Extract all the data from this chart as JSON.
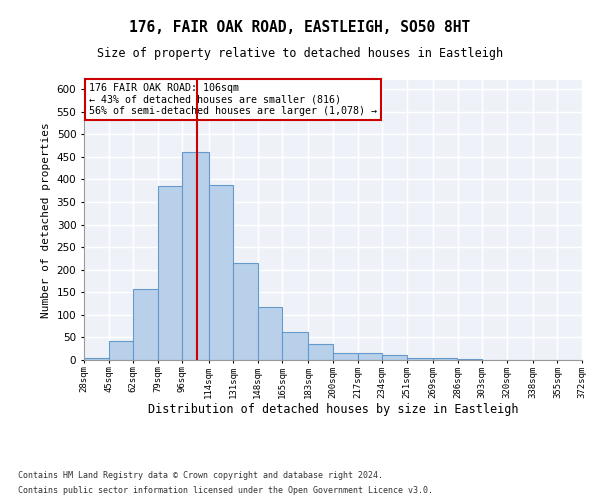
{
  "title_line1": "176, FAIR OAK ROAD, EASTLEIGH, SO50 8HT",
  "title_line2": "Size of property relative to detached houses in Eastleigh",
  "xlabel": "Distribution of detached houses by size in Eastleigh",
  "ylabel": "Number of detached properties",
  "annotation_line1": "176 FAIR OAK ROAD: 106sqm",
  "annotation_line2": "← 43% of detached houses are smaller (816)",
  "annotation_line3": "56% of semi-detached houses are larger (1,078) →",
  "property_size_sqm": 106,
  "bin_edges": [
    28,
    45,
    62,
    79,
    96,
    114,
    131,
    148,
    165,
    183,
    200,
    217,
    234,
    251,
    269,
    286,
    303,
    320,
    338,
    355,
    372
  ],
  "bar_heights": [
    5,
    42,
    158,
    385,
    460,
    388,
    215,
    118,
    62,
    35,
    15,
    15,
    10,
    5,
    5,
    3,
    1,
    1,
    0,
    0
  ],
  "bar_color": "#b8d0ea",
  "bar_edge_color": "#6699cc",
  "vline_color": "#cc0000",
  "vline_x": 106,
  "ylim": [
    0,
    620
  ],
  "yticks": [
    0,
    50,
    100,
    150,
    200,
    250,
    300,
    350,
    400,
    450,
    500,
    550,
    600
  ],
  "background_color": "#eef2f8",
  "grid_color": "#ffffff",
  "annotation_box_color": "#ffffff",
  "annotation_box_edgecolor": "#cc0000",
  "footer_line1": "Contains HM Land Registry data © Crown copyright and database right 2024.",
  "footer_line2": "Contains public sector information licensed under the Open Government Licence v3.0."
}
